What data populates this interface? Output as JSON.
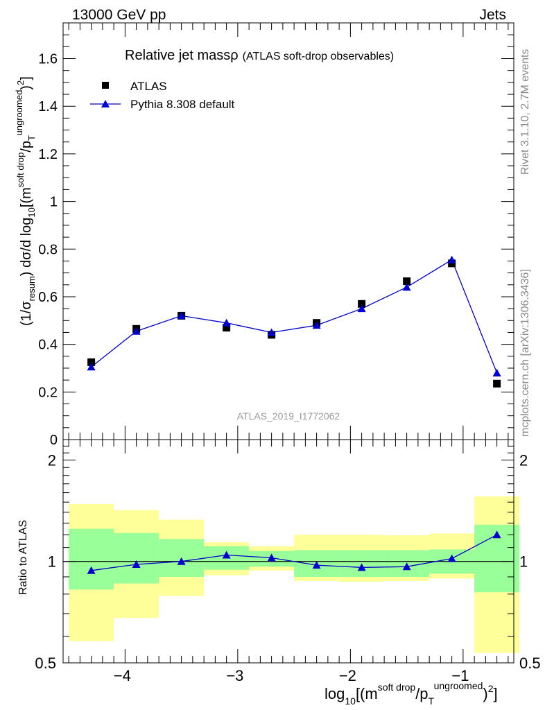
{
  "header": {
    "left": "13000 GeV pp",
    "right": "Jets"
  },
  "side_labels": {
    "rivet": "Rivet 3.1.10,  2.7M events",
    "mcplots": "mcplots.cern.ch [arXiv:1306.3436]"
  },
  "chart_data": [
    {
      "type": "scatter",
      "title_main": "Relative jet massρ",
      "title_sub": "(ATLAS soft-drop observables)",
      "analysis_id": "ATLAS_2019_I1772062",
      "ylabel": "(1/σresum) dσ/d log10[(m^soft drop/pT^ungroomed)^2]",
      "ylim": [
        0,
        1.75
      ],
      "y_ticks": [
        "0",
        "0.2",
        "0.4",
        "0.6",
        "0.8",
        "1",
        "1.2",
        "1.4",
        "1.6"
      ],
      "legend_position": "top-left",
      "series": [
        {
          "name": "ATLAS",
          "color": "#000000",
          "marker": "square",
          "x": [
            -4.3,
            -3.9,
            -3.5,
            -3.1,
            -2.7,
            -2.3,
            -1.9,
            -1.5,
            -1.1,
            -0.7
          ],
          "values": [
            0.325,
            0.465,
            0.52,
            0.47,
            0.44,
            0.49,
            0.57,
            0.665,
            0.74,
            0.235
          ]
        },
        {
          "name": "Pythia 8.308 default",
          "color": "#0000cc",
          "marker": "triangle",
          "x": [
            -4.3,
            -3.9,
            -3.5,
            -3.1,
            -2.7,
            -2.3,
            -1.9,
            -1.5,
            -1.1,
            -0.7
          ],
          "values": [
            0.305,
            0.455,
            0.52,
            0.49,
            0.45,
            0.48,
            0.55,
            0.64,
            0.755,
            0.28
          ]
        }
      ]
    },
    {
      "type": "scatter",
      "ylabel": "Ratio to ATLAS",
      "xlabel": "log10[(m^soft drop/pT^ungroomed)^2]",
      "xlim": [
        -4.55,
        -0.55
      ],
      "x_ticks": [
        "−4",
        "−3",
        "−2",
        "−1"
      ],
      "ylim": [
        0.5,
        2.3
      ],
      "y_scale": "log",
      "y_ticks": [
        "0.5",
        "1",
        "2"
      ],
      "reference_line": 1,
      "bin_edges": [
        -4.5,
        -4.1,
        -3.7,
        -3.3,
        -2.9,
        -2.5,
        -2.1,
        -1.7,
        -1.3,
        -0.9,
        -0.5
      ],
      "band_inner": {
        "color": "#99ff99",
        "low": [
          0.825,
          0.86,
          0.9,
          0.945,
          0.965,
          0.9,
          0.9,
          0.9,
          0.92,
          0.81
        ],
        "high": [
          1.25,
          1.215,
          1.165,
          1.11,
          1.075,
          1.08,
          1.08,
          1.08,
          1.085,
          1.285
        ]
      },
      "band_outer": {
        "color": "#ffff99",
        "low": [
          0.58,
          0.68,
          0.79,
          0.91,
          0.94,
          0.875,
          0.87,
          0.875,
          0.89,
          0.535
        ],
        "high": [
          1.48,
          1.42,
          1.33,
          1.14,
          1.11,
          1.2,
          1.2,
          1.195,
          1.21,
          1.56
        ]
      },
      "series": [
        {
          "name": "Pythia 8.308 default",
          "color": "#0000cc",
          "x": [
            -4.3,
            -3.9,
            -3.5,
            -3.1,
            -2.7,
            -2.3,
            -1.9,
            -1.5,
            -1.1,
            -0.7
          ],
          "values": [
            0.94,
            0.98,
            1.0,
            1.045,
            1.025,
            0.975,
            0.96,
            0.965,
            1.02,
            1.2
          ]
        }
      ]
    }
  ]
}
